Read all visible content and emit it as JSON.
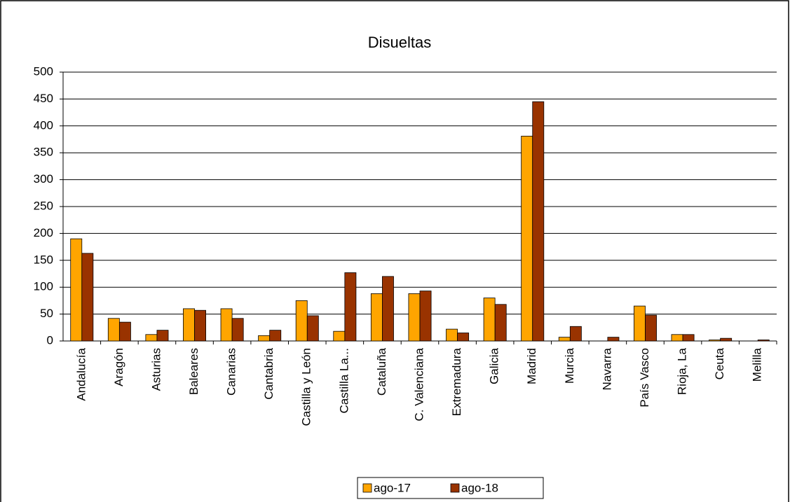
{
  "chart_data": {
    "type": "bar",
    "title": "Disueltas",
    "categories": [
      "Andalucía",
      "Aragón",
      "Asturias",
      "Baleares",
      "Canarias",
      "Cantabria",
      "Castilla y León",
      "Castilla  La...",
      "Cataluña",
      "C. Valenciana",
      "Extremadura",
      "Galicia",
      "Madrid",
      "Murcia",
      "Navarra",
      "País Vasco",
      "Rioja, La",
      "Ceuta",
      "Melilla"
    ],
    "series": [
      {
        "name": "ago-17",
        "color": "#ffa500",
        "values": [
          190,
          42,
          12,
          60,
          60,
          10,
          75,
          18,
          88,
          88,
          22,
          80,
          381,
          7,
          0,
          65,
          12,
          2,
          0
        ]
      },
      {
        "name": "ago-18",
        "color": "#993300",
        "values": [
          163,
          35,
          20,
          57,
          42,
          20,
          47,
          127,
          120,
          93,
          15,
          68,
          445,
          27,
          7,
          48,
          12,
          5,
          2
        ]
      }
    ],
    "ylim": [
      0,
      500
    ],
    "yticks": [
      0,
      50,
      100,
      150,
      200,
      250,
      300,
      350,
      400,
      450,
      500
    ],
    "grid": true,
    "legend": "bottom"
  }
}
